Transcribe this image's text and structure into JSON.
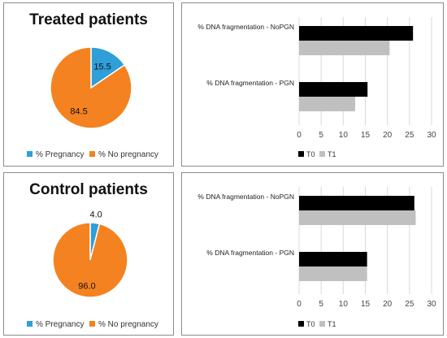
{
  "colors": {
    "pregnancy": "#2e9fd8",
    "no_pregnancy": "#f58220",
    "t0": "#000000",
    "t1": "#c0c0c0",
    "grid": "#d9d9d9"
  },
  "chart_data": [
    {
      "type": "pie",
      "title": "Treated patients",
      "categories": [
        "% Pregnancy",
        "% No pregnancy"
      ],
      "values": [
        15.5,
        84.5
      ],
      "legend": "bottom"
    },
    {
      "type": "bar",
      "orientation": "horizontal",
      "categories": [
        "% DNA fragmentation - NoPGN",
        "% DNA fragmentation - PGN"
      ],
      "series": [
        {
          "name": "T0",
          "values": [
            25.8,
            15.5
          ]
        },
        {
          "name": "T1",
          "values": [
            20.5,
            12.7
          ]
        }
      ],
      "xlim": [
        0,
        30
      ],
      "xticks": [
        0,
        5,
        10,
        15,
        20,
        25,
        30
      ],
      "grid": true,
      "legend": "bottom-left"
    },
    {
      "type": "pie",
      "title": "Control patients",
      "categories": [
        "% Pregnancy",
        "% No pregnancy"
      ],
      "values": [
        4.0,
        96.0
      ],
      "legend": "bottom"
    },
    {
      "type": "bar",
      "orientation": "horizontal",
      "categories": [
        "% DNA fragmentation - NoPGN",
        "% DNA fragmentation - PGN"
      ],
      "series": [
        {
          "name": "T0",
          "values": [
            26.1,
            15.4
          ]
        },
        {
          "name": "T1",
          "values": [
            26.4,
            15.4
          ]
        }
      ],
      "xlim": [
        0,
        30
      ],
      "xticks": [
        0,
        5,
        10,
        15,
        20,
        25,
        30
      ],
      "grid": true,
      "legend": "bottom-left"
    }
  ]
}
